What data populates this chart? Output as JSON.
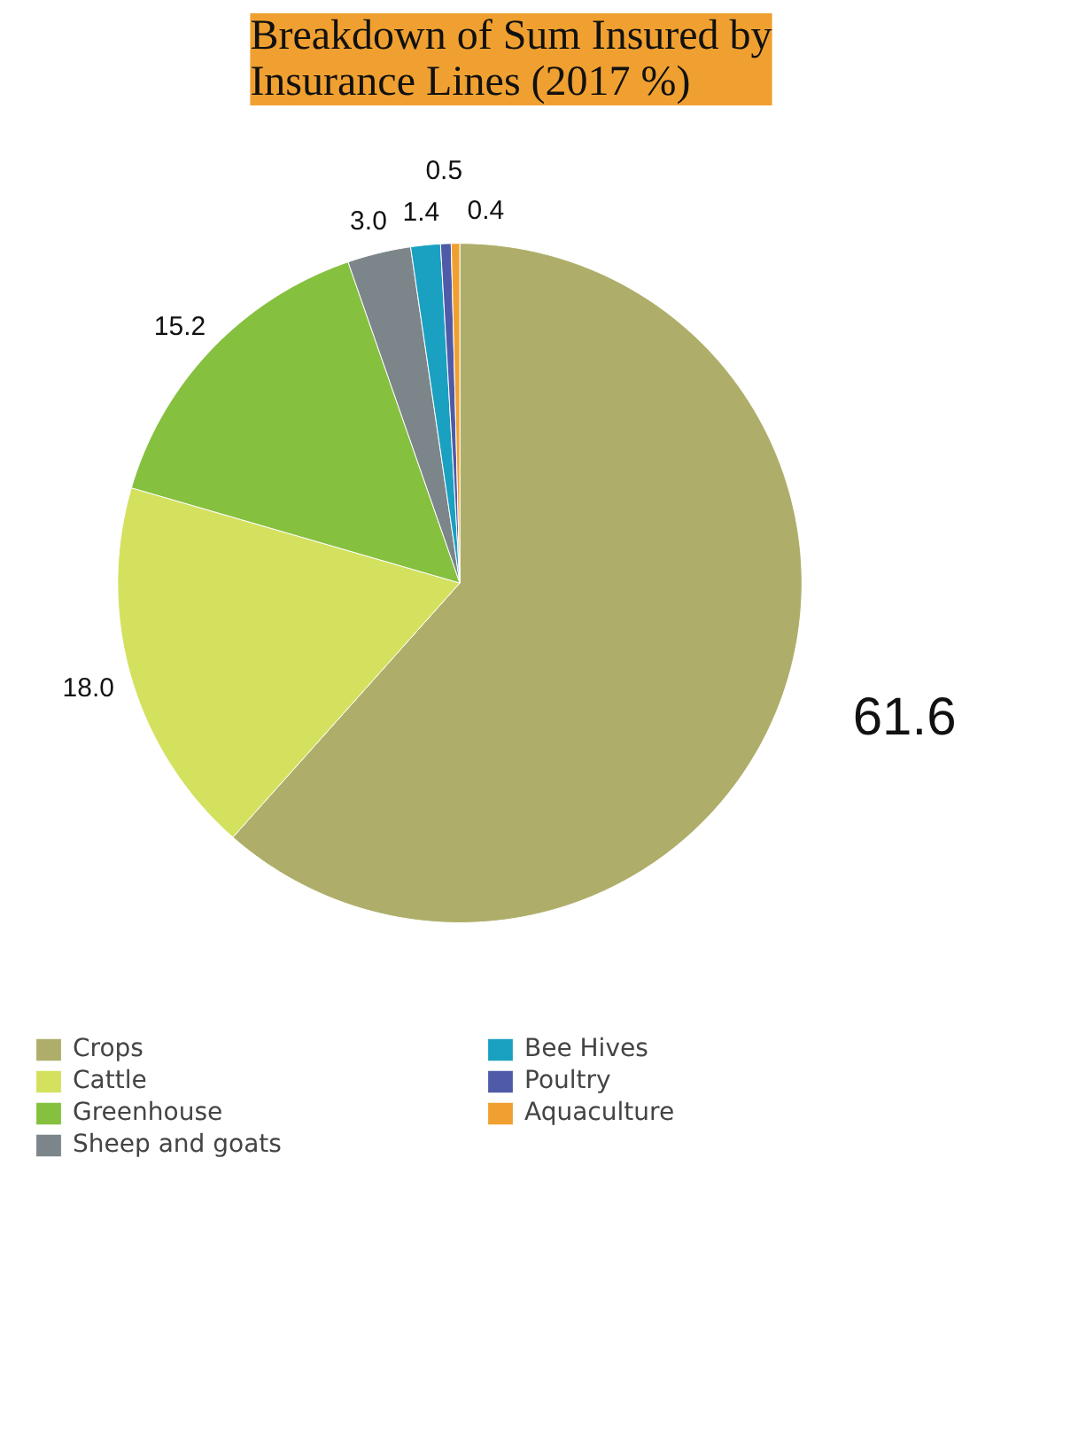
{
  "chart_data": {
    "type": "pie",
    "title": "Breakdown of Sum Insured by Insurance Lines (2017 %)",
    "categories": [
      "Crops",
      "Cattle",
      "Greenhouse",
      "Sheep and goats",
      "Bee Hives",
      "Poultry",
      "Aquaculture"
    ],
    "values": [
      61.6,
      18.0,
      15.2,
      3.0,
      1.4,
      0.5,
      0.4
    ],
    "colors": [
      "#aeae6a",
      "#d4e15e",
      "#86c03f",
      "#7b858a",
      "#1aa0c0",
      "#4f5aa8",
      "#f0a030"
    ],
    "value_labels": [
      "61.6",
      "18.0",
      "15.2",
      "3.0",
      "1.4",
      "0.5",
      "0.4"
    ],
    "legend": "bottom"
  }
}
